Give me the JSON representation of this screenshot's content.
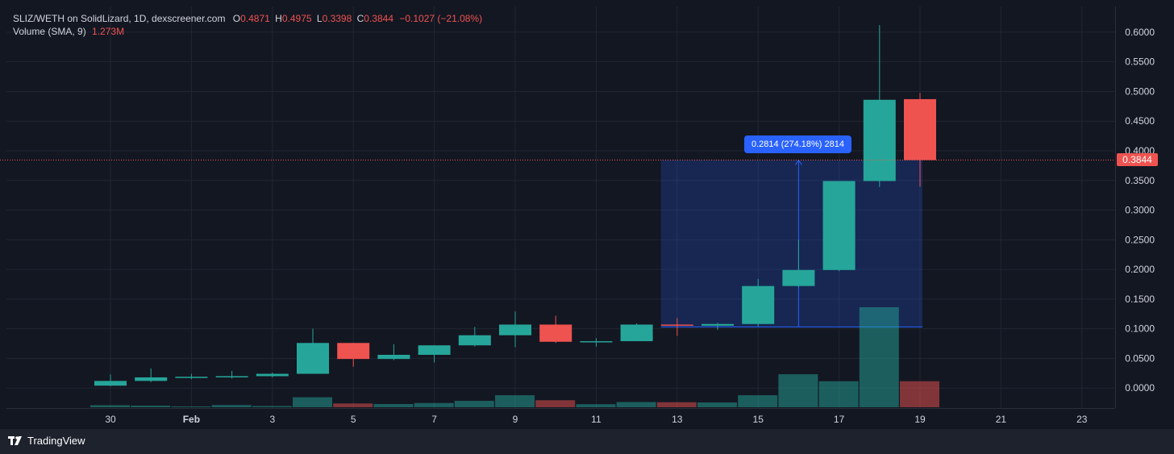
{
  "legend": {
    "symbol": "SLIZ/WETH on SolidLizard, 1D, dexscreener.com",
    "o_label": "O",
    "o_value": "0.4871",
    "h_label": "H",
    "h_value": "0.4975",
    "l_label": "L",
    "l_value": "0.3398",
    "c_label": "C",
    "c_value": "0.3844",
    "change": "−0.1027 (−21.08%)",
    "volume_label": "Volume (SMA, 9)",
    "volume_value": "1.273M"
  },
  "current_price_label": "0.3844",
  "measure_label": "0.2814 (274.18%) 2814",
  "brand": "TradingView",
  "colors": {
    "up": "#26a69a",
    "down": "#ef5350",
    "background": "#131722",
    "grid": "#222633",
    "measure": "#2962ff"
  },
  "chart_data": {
    "type": "candlestick",
    "y_ticks": [
      "0.6000",
      "0.5500",
      "0.5000",
      "0.4500",
      "0.4000",
      "0.3500",
      "0.3000",
      "0.2500",
      "0.2000",
      "0.1500",
      "0.1000",
      "0.0500",
      "0.0000"
    ],
    "x_ticks": [
      {
        "label": "30",
        "day": 0
      },
      {
        "label": "Feb",
        "day": 2
      },
      {
        "label": "3",
        "day": 4
      },
      {
        "label": "5",
        "day": 6
      },
      {
        "label": "7",
        "day": 8
      },
      {
        "label": "9",
        "day": 10
      },
      {
        "label": "11",
        "day": 12
      },
      {
        "label": "13",
        "day": 14
      },
      {
        "label": "15",
        "day": 16
      },
      {
        "label": "17",
        "day": 18
      },
      {
        "label": "19",
        "day": 20
      },
      {
        "label": "21",
        "day": 22
      },
      {
        "label": "23",
        "day": 24
      }
    ],
    "candles": [
      {
        "day": 0,
        "o": 0.004,
        "h": 0.023,
        "l": 0.003,
        "c": 0.012
      },
      {
        "day": 1,
        "o": 0.012,
        "h": 0.033,
        "l": 0.01,
        "c": 0.018
      },
      {
        "day": 2,
        "o": 0.018,
        "h": 0.024,
        "l": 0.015,
        "c": 0.019
      },
      {
        "day": 3,
        "o": 0.019,
        "h": 0.029,
        "l": 0.016,
        "c": 0.02
      },
      {
        "day": 4,
        "o": 0.02,
        "h": 0.026,
        "l": 0.018,
        "c": 0.024
      },
      {
        "day": 5,
        "o": 0.024,
        "h": 0.1,
        "l": 0.024,
        "c": 0.076
      },
      {
        "day": 6,
        "o": 0.076,
        "h": 0.076,
        "l": 0.036,
        "c": 0.049
      },
      {
        "day": 7,
        "o": 0.049,
        "h": 0.074,
        "l": 0.047,
        "c": 0.056
      },
      {
        "day": 8,
        "o": 0.056,
        "h": 0.072,
        "l": 0.043,
        "c": 0.072
      },
      {
        "day": 9,
        "o": 0.072,
        "h": 0.103,
        "l": 0.07,
        "c": 0.089
      },
      {
        "day": 10,
        "o": 0.089,
        "h": 0.129,
        "l": 0.069,
        "c": 0.107
      },
      {
        "day": 11,
        "o": 0.107,
        "h": 0.122,
        "l": 0.076,
        "c": 0.078
      },
      {
        "day": 12,
        "o": 0.078,
        "h": 0.084,
        "l": 0.07,
        "c": 0.079
      },
      {
        "day": 13,
        "o": 0.079,
        "h": 0.109,
        "l": 0.079,
        "c": 0.107
      },
      {
        "day": 14,
        "o": 0.107,
        "h": 0.118,
        "l": 0.088,
        "c": 0.105
      },
      {
        "day": 15,
        "o": 0.105,
        "h": 0.11,
        "l": 0.098,
        "c": 0.108
      },
      {
        "day": 16,
        "o": 0.108,
        "h": 0.184,
        "l": 0.104,
        "c": 0.172
      },
      {
        "day": 17,
        "o": 0.172,
        "h": 0.25,
        "l": 0.17,
        "c": 0.199
      },
      {
        "day": 18,
        "o": 0.199,
        "h": 0.349,
        "l": 0.197,
        "c": 0.349
      },
      {
        "day": 19,
        "o": 0.349,
        "h": 0.612,
        "l": 0.339,
        "c": 0.486
      },
      {
        "day": 20,
        "o": 0.4871,
        "h": 0.4975,
        "l": 0.3398,
        "c": 0.3844
      }
    ],
    "volume": [
      {
        "day": 0,
        "v": 0.02,
        "up": true
      },
      {
        "day": 1,
        "v": 0.016,
        "up": true
      },
      {
        "day": 2,
        "v": 0.008,
        "up": true
      },
      {
        "day": 3,
        "v": 0.022,
        "up": true
      },
      {
        "day": 4,
        "v": 0.012,
        "up": true
      },
      {
        "day": 5,
        "v": 0.1,
        "up": true
      },
      {
        "day": 6,
        "v": 0.038,
        "up": false
      },
      {
        "day": 7,
        "v": 0.032,
        "up": true
      },
      {
        "day": 8,
        "v": 0.042,
        "up": true
      },
      {
        "day": 9,
        "v": 0.064,
        "up": true
      },
      {
        "day": 10,
        "v": 0.12,
        "up": true
      },
      {
        "day": 11,
        "v": 0.07,
        "up": false
      },
      {
        "day": 12,
        "v": 0.03,
        "up": true
      },
      {
        "day": 13,
        "v": 0.052,
        "up": true
      },
      {
        "day": 14,
        "v": 0.05,
        "up": false
      },
      {
        "day": 15,
        "v": 0.048,
        "up": true
      },
      {
        "day": 16,
        "v": 0.12,
        "up": true
      },
      {
        "day": 17,
        "v": 0.33,
        "up": true
      },
      {
        "day": 18,
        "v": 0.26,
        "up": true
      },
      {
        "day": 19,
        "v": 1.0,
        "up": true
      },
      {
        "day": 20,
        "v": 0.26,
        "up": false
      }
    ],
    "current_price": 0.3844,
    "measure": {
      "start_day": 14,
      "end_day": 20,
      "low": 0.103,
      "high": 0.3844,
      "arrow_day": 17
    }
  }
}
